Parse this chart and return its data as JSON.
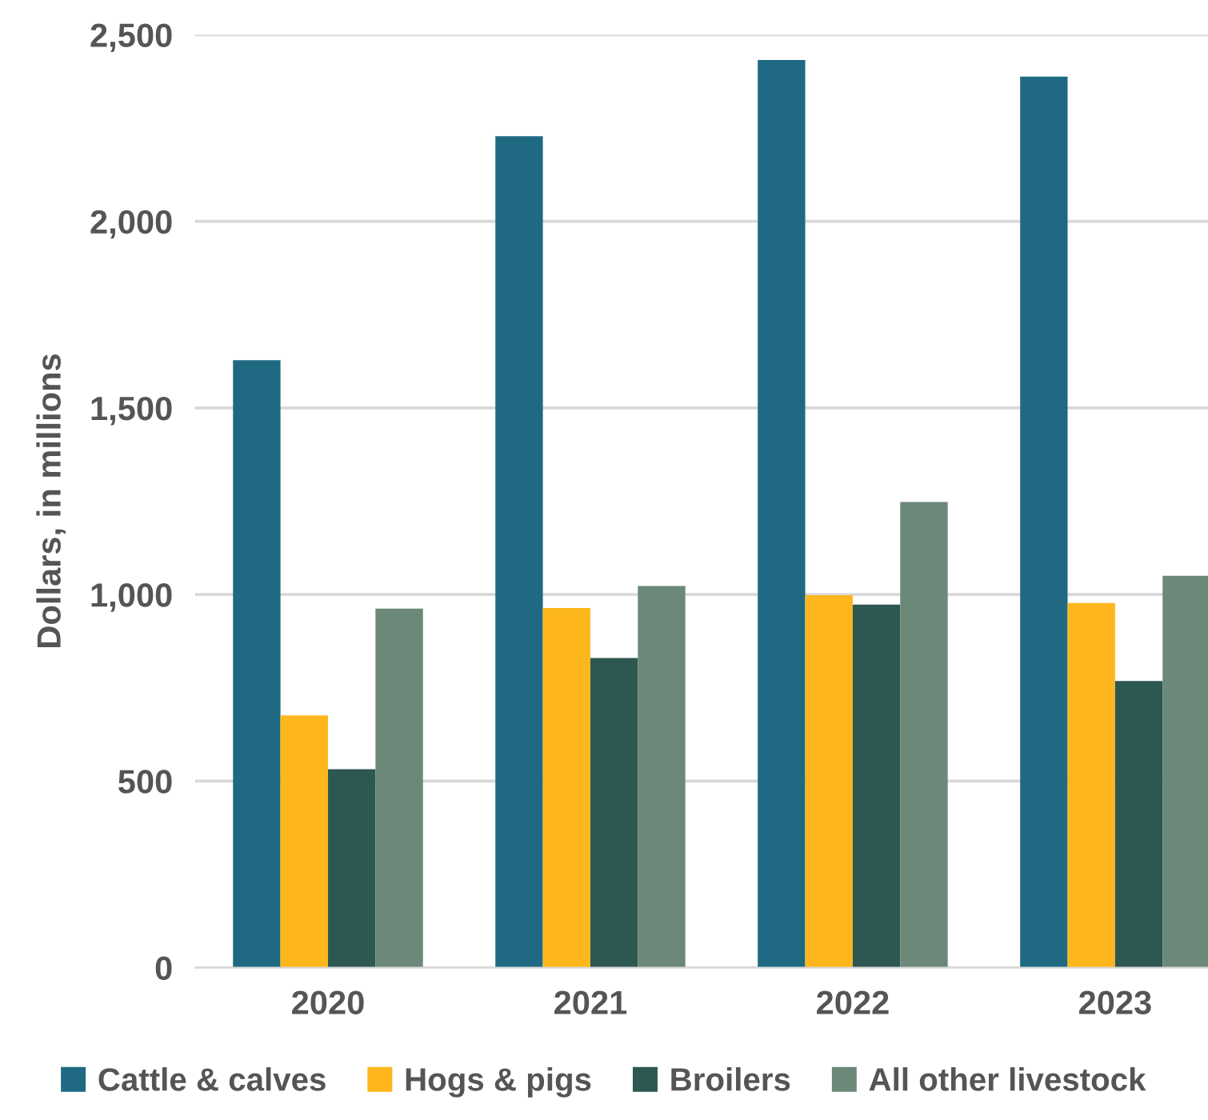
{
  "chart_data": {
    "type": "bar",
    "ylabel": "Dollars, in millions",
    "categories": [
      "2020",
      "2021",
      "2022",
      "2023"
    ],
    "series": [
      {
        "name": "Cattle & calves",
        "color": "#1f6a82",
        "values": [
          1628,
          2228,
          2432,
          2388
        ]
      },
      {
        "name": "Hogs & pigs",
        "color": "#fdb71d",
        "values": [
          676,
          964,
          998,
          977
        ]
      },
      {
        "name": "Broilers",
        "color": "#2d5852",
        "values": [
          532,
          830,
          973,
          768
        ]
      },
      {
        "name": "All other livestock",
        "color": "#6b8878",
        "values": [
          962,
          1023,
          1248,
          1050
        ]
      }
    ],
    "ylim": [
      0,
      2500
    ],
    "yticks": [
      0,
      500,
      {
        "value": 1000,
        "label": "1,000"
      },
      {
        "value": 1500,
        "label": "1,500"
      },
      {
        "value": 2000,
        "label": "2,000"
      },
      {
        "value": 2500,
        "label": "2,500"
      }
    ],
    "grid": "y",
    "legend": "bottom"
  }
}
